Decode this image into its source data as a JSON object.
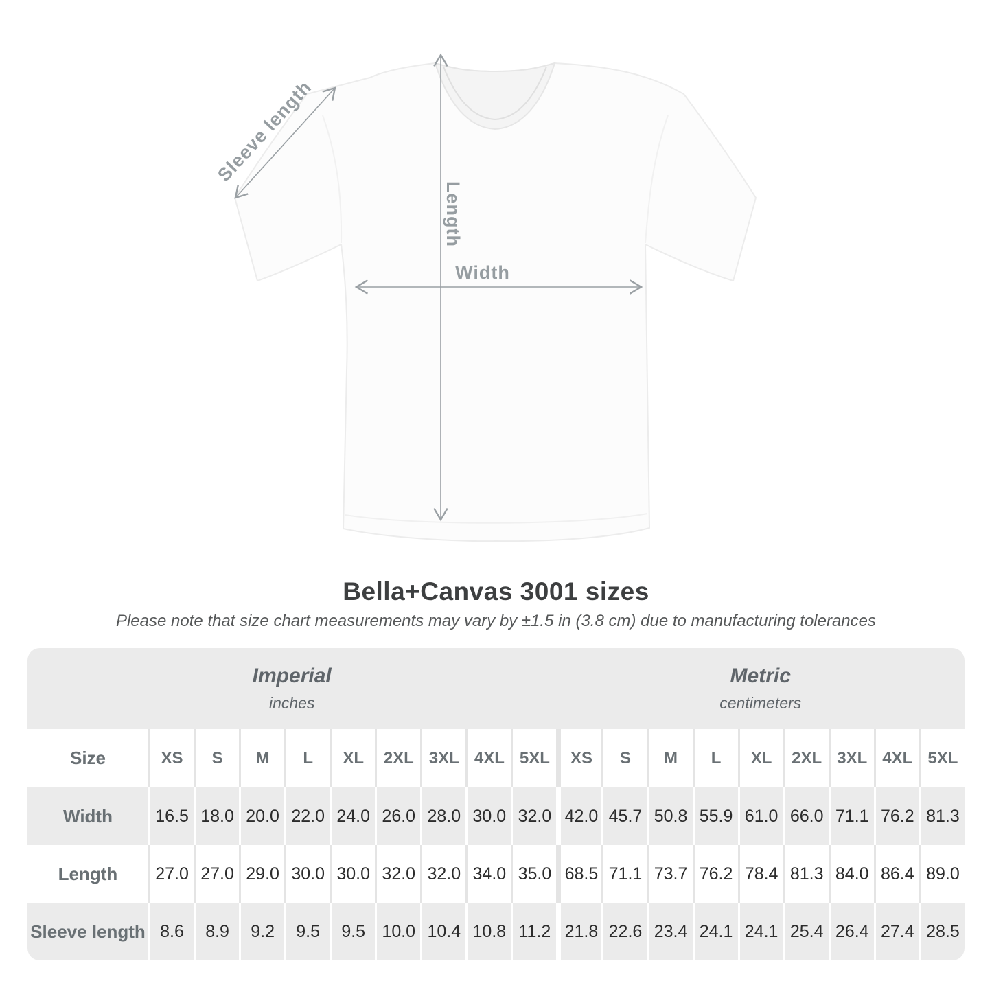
{
  "title": "Bella+Canvas 3001 sizes",
  "subtitle": "Please note that size chart measurements may vary by ±1.5 in (3.8 cm) due to manufacturing tolerances",
  "diagram": {
    "sleeve_label": "Sleeve length",
    "length_label": "Length",
    "width_label": "Width",
    "arrow_color": "#9aa0a4",
    "label_color": "#969da1",
    "shirt_fill": "#fcfcfc"
  },
  "table": {
    "unit_groups": [
      {
        "label": "Imperial",
        "sublabel": "inches"
      },
      {
        "label": "Metric",
        "sublabel": "centimeters"
      }
    ],
    "size_header": "Size",
    "sizes": [
      "XS",
      "S",
      "M",
      "L",
      "XL",
      "2XL",
      "3XL",
      "4XL",
      "5XL"
    ],
    "rows": [
      {
        "label": "Width",
        "imperial": [
          "16.5",
          "18.0",
          "20.0",
          "22.0",
          "24.0",
          "26.0",
          "28.0",
          "30.0",
          "32.0"
        ],
        "metric": [
          "42.0",
          "45.7",
          "50.8",
          "55.9",
          "61.0",
          "66.0",
          "71.1",
          "76.2",
          "81.3"
        ]
      },
      {
        "label": "Length",
        "imperial": [
          "27.0",
          "27.0",
          "29.0",
          "30.0",
          "30.0",
          "32.0",
          "32.0",
          "34.0",
          "35.0"
        ],
        "metric": [
          "68.5",
          "71.1",
          "73.7",
          "76.2",
          "78.4",
          "81.3",
          "84.0",
          "86.4",
          "89.0"
        ]
      },
      {
        "label": "Sleeve length",
        "imperial": [
          "8.6",
          "8.9",
          "9.2",
          "9.5",
          "9.5",
          "10.0",
          "10.4",
          "10.8",
          "11.2"
        ],
        "metric": [
          "21.8",
          "22.6",
          "23.4",
          "24.1",
          "24.1",
          "25.4",
          "26.4",
          "27.4",
          "28.5"
        ]
      }
    ],
    "band_color": "#ebebeb",
    "zebra_gray": "#ebebeb"
  },
  "chart_data": {
    "type": "table",
    "title": "Bella+Canvas 3001 sizes",
    "columns": [
      "Size",
      "XS",
      "S",
      "M",
      "L",
      "XL",
      "2XL",
      "3XL",
      "4XL",
      "5XL (inches)",
      "XS",
      "S",
      "M",
      "L",
      "XL",
      "2XL",
      "3XL",
      "4XL",
      "5XL (centimeters)"
    ],
    "rows": [
      [
        "Width",
        16.5,
        18.0,
        20.0,
        22.0,
        24.0,
        26.0,
        28.0,
        30.0,
        32.0,
        42.0,
        45.7,
        50.8,
        55.9,
        61.0,
        66.0,
        71.1,
        76.2,
        81.3
      ],
      [
        "Length",
        27.0,
        27.0,
        29.0,
        30.0,
        30.0,
        32.0,
        32.0,
        34.0,
        35.0,
        68.5,
        71.1,
        73.7,
        76.2,
        78.4,
        81.3,
        84.0,
        86.4,
        89.0
      ],
      [
        "Sleeve length",
        8.6,
        8.9,
        9.2,
        9.5,
        9.5,
        10.0,
        10.4,
        10.8,
        11.2,
        21.8,
        22.6,
        23.4,
        24.1,
        24.1,
        25.4,
        26.4,
        27.4,
        28.5
      ]
    ]
  }
}
